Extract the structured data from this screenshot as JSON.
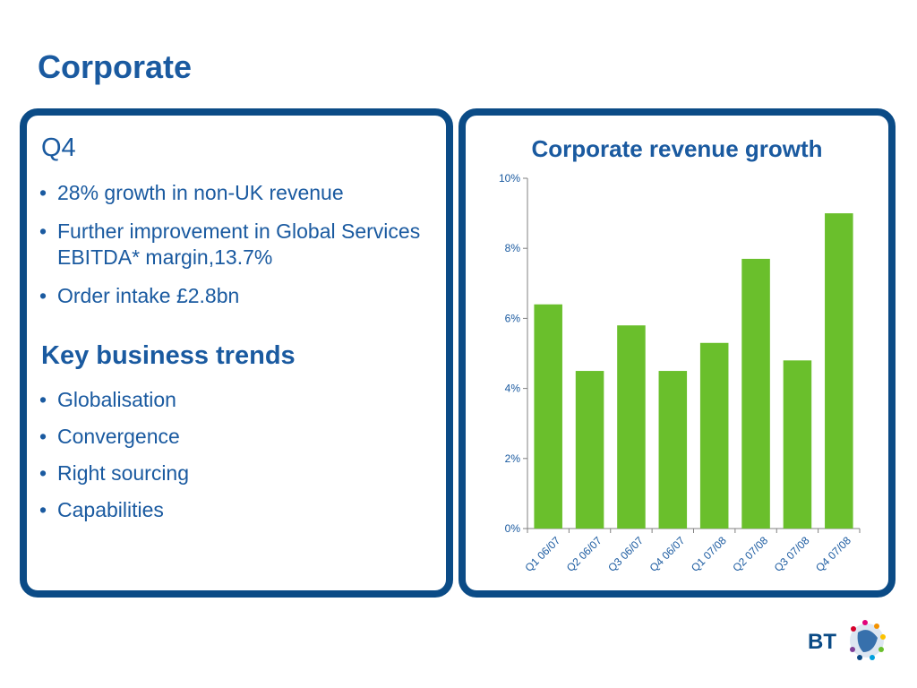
{
  "slide": {
    "title": "Corporate"
  },
  "q4": {
    "heading": "Q4",
    "bullets": [
      "28% growth in non-UK revenue",
      "Further improvement in Global Services EBITDA* margin,13.7%",
      "Order intake £2.8bn"
    ]
  },
  "trends": {
    "heading": "Key business trends",
    "bullets": [
      "Globalisation",
      "Convergence",
      "Right sourcing",
      "Capabilities"
    ]
  },
  "logo": {
    "text": "BT"
  },
  "colors": {
    "primary": "#1a5aa0",
    "border": "#0b4b86",
    "bar": "#6abf2c"
  },
  "chart_data": {
    "type": "bar",
    "title": "Corporate revenue growth",
    "xlabel": "",
    "ylabel": "",
    "categories": [
      "Q1 06/07",
      "Q2 06/07",
      "Q3 06/07",
      "Q4 06/07",
      "Q1 07/08",
      "Q2 07/08",
      "Q3 07/08",
      "Q4 07/08"
    ],
    "values": [
      6.4,
      4.5,
      5.8,
      4.5,
      5.3,
      7.7,
      4.8,
      9.0
    ],
    "ylim": [
      0,
      10
    ],
    "yticks": [
      0,
      2,
      4,
      6,
      8,
      10
    ],
    "ytick_labels": [
      "0%",
      "2%",
      "4%",
      "6%",
      "8%",
      "10%"
    ],
    "grid": false,
    "legend": "none"
  }
}
